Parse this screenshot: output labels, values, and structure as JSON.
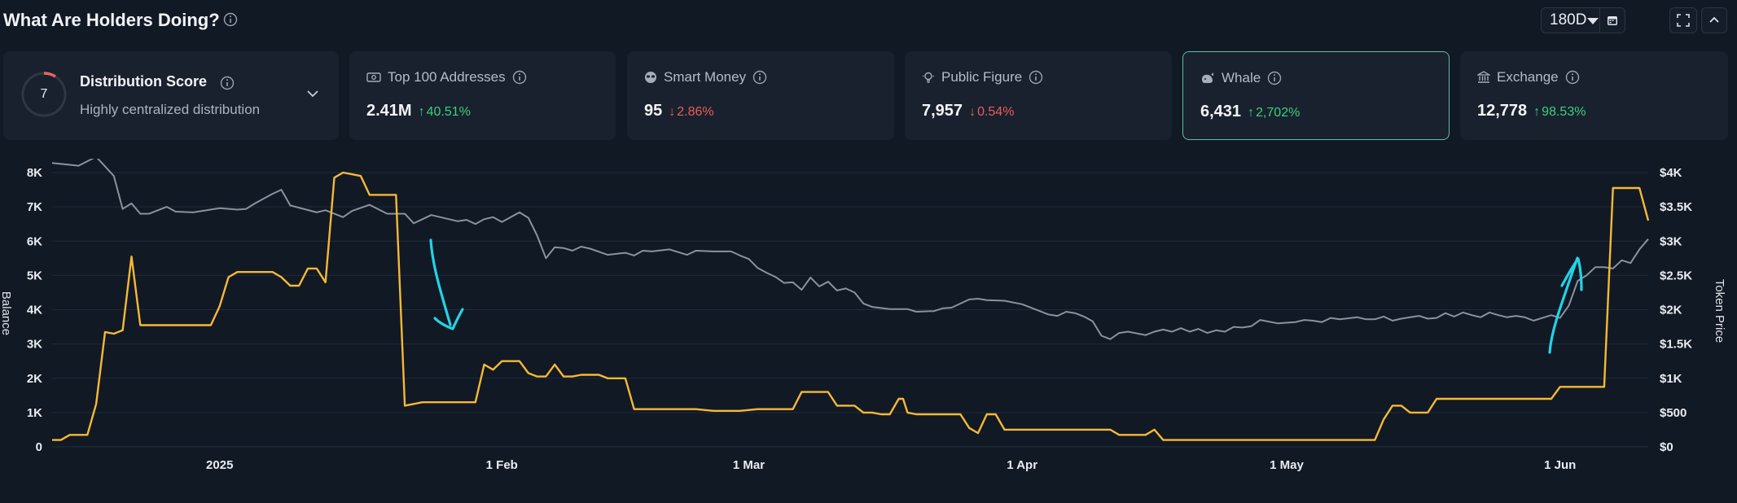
{
  "header": {
    "title": "What Are Holders Doing?",
    "range": "180D"
  },
  "cards": {
    "distribution": {
      "score": "7",
      "title": "Distribution Score",
      "subtitle": "Highly centralized distribution"
    },
    "top100": {
      "label": "Top 100 Addresses",
      "value": "2.41M",
      "change": "40.51%",
      "direction": "up"
    },
    "smart_money": {
      "label": "Smart Money",
      "value": "95",
      "change": "2.86%",
      "direction": "down"
    },
    "public_figure": {
      "label": "Public Figure",
      "value": "7,957",
      "change": "0.54%",
      "direction": "down"
    },
    "whale": {
      "label": "Whale",
      "value": "6,431",
      "change": "2,702%",
      "direction": "up"
    },
    "exchange": {
      "label": "Exchange",
      "value": "12,778",
      "change": "98.53%",
      "direction": "up"
    }
  },
  "colors": {
    "background": "#111925",
    "card": "#18212d",
    "active_border": "#5fc0a4",
    "up": "#3fcf7e",
    "down": "#ec5b5b",
    "balance_line": "#f6b935",
    "price_line": "#8b929d",
    "annotation": "#22d3e6"
  },
  "chart_data": {
    "type": "line",
    "left_axis": {
      "label": "Balance",
      "ticks": [
        "0",
        "1K",
        "2K",
        "3K",
        "4K",
        "5K",
        "6K",
        "7K",
        "8K"
      ],
      "range": [
        0,
        8000
      ]
    },
    "right_axis": {
      "label": "Token Price",
      "ticks": [
        "$0",
        "$500",
        "$1K",
        "$1.5K",
        "$2K",
        "$2.5K",
        "$3K",
        "$3.5K",
        "$4K"
      ],
      "range": [
        0,
        4000
      ]
    },
    "x_ticks": [
      "2025",
      "1 Feb",
      "1 Mar",
      "1 Apr",
      "1 May",
      "1 Jun"
    ],
    "x_tick_days": [
      19,
      51,
      79,
      110,
      140,
      171
    ],
    "x_range": [
      0,
      181
    ],
    "series": [
      {
        "axis": "left",
        "color": "#f6b935",
        "points": [
          [
            0,
            200
          ],
          [
            1,
            200
          ],
          [
            2,
            350
          ],
          [
            3,
            350
          ],
          [
            4,
            350
          ],
          [
            5,
            1250
          ],
          [
            6,
            3350
          ],
          [
            7,
            3300
          ],
          [
            8,
            3400
          ],
          [
            9,
            5550
          ],
          [
            10,
            3550
          ],
          [
            11,
            3550
          ],
          [
            13,
            3550
          ],
          [
            18,
            3550
          ],
          [
            19,
            4100
          ],
          [
            20,
            4950
          ],
          [
            21,
            5100
          ],
          [
            25,
            5100
          ],
          [
            26,
            4950
          ],
          [
            27,
            4700
          ],
          [
            28,
            4700
          ],
          [
            29,
            5200
          ],
          [
            30,
            5200
          ],
          [
            31,
            4800
          ],
          [
            32,
            7850
          ],
          [
            33,
            8000
          ],
          [
            34,
            7950
          ],
          [
            35,
            7900
          ],
          [
            36,
            7350
          ],
          [
            39,
            7350
          ],
          [
            40,
            1200
          ],
          [
            42,
            1300
          ],
          [
            48,
            1300
          ],
          [
            49,
            2400
          ],
          [
            50,
            2250
          ],
          [
            51,
            2500
          ],
          [
            53,
            2500
          ],
          [
            54,
            2150
          ],
          [
            55,
            2050
          ],
          [
            56,
            2050
          ],
          [
            57,
            2400
          ],
          [
            58,
            2050
          ],
          [
            59,
            2050
          ],
          [
            60,
            2100
          ],
          [
            62,
            2100
          ],
          [
            63,
            2000
          ],
          [
            65,
            2000
          ],
          [
            66,
            1100
          ],
          [
            73,
            1100
          ],
          [
            75,
            1050
          ],
          [
            78,
            1050
          ],
          [
            80,
            1100
          ],
          [
            81,
            1100
          ],
          [
            83,
            1100
          ],
          [
            84,
            1100
          ],
          [
            85,
            1600
          ],
          [
            88,
            1600
          ],
          [
            89,
            1200
          ],
          [
            91,
            1200
          ],
          [
            92,
            1000
          ],
          [
            93,
            1000
          ],
          [
            94,
            950
          ],
          [
            95,
            950
          ],
          [
            96,
            1400
          ],
          [
            96.5,
            1400
          ],
          [
            97,
            1000
          ],
          [
            98,
            950
          ],
          [
            103,
            950
          ],
          [
            104,
            550
          ],
          [
            105,
            400
          ],
          [
            106,
            950
          ],
          [
            107,
            950
          ],
          [
            108,
            500
          ],
          [
            111,
            500
          ],
          [
            120,
            500
          ],
          [
            121,
            350
          ],
          [
            124,
            350
          ],
          [
            125,
            500
          ],
          [
            126,
            200
          ],
          [
            150,
            200
          ],
          [
            151,
            800
          ],
          [
            152,
            1200
          ],
          [
            153,
            1200
          ],
          [
            154,
            1000
          ],
          [
            155,
            1000
          ],
          [
            156,
            1000
          ],
          [
            157,
            1400
          ],
          [
            158,
            1400
          ],
          [
            168,
            1400
          ],
          [
            170,
            1400
          ],
          [
            171,
            1750
          ],
          [
            172,
            1750
          ],
          [
            176,
            1750
          ],
          [
            177,
            7550
          ],
          [
            180,
            7550
          ],
          [
            181,
            6600
          ]
        ]
      },
      {
        "axis": "right",
        "color": "#8b929d",
        "points": [
          [
            0,
            4140
          ],
          [
            3,
            4100
          ],
          [
            5,
            4230
          ],
          [
            7,
            3950
          ],
          [
            8,
            3470
          ],
          [
            9,
            3550
          ],
          [
            10,
            3400
          ],
          [
            11,
            3400
          ],
          [
            13,
            3500
          ],
          [
            14,
            3430
          ],
          [
            16,
            3420
          ],
          [
            19,
            3480
          ],
          [
            21,
            3460
          ],
          [
            22,
            3470
          ],
          [
            23,
            3550
          ],
          [
            25,
            3690
          ],
          [
            26,
            3750
          ],
          [
            27,
            3520
          ],
          [
            30,
            3420
          ],
          [
            31,
            3450
          ],
          [
            33,
            3350
          ],
          [
            34,
            3440
          ],
          [
            36,
            3530
          ],
          [
            38,
            3400
          ],
          [
            40,
            3400
          ],
          [
            41,
            3260
          ],
          [
            42,
            3320
          ],
          [
            43,
            3380
          ],
          [
            46,
            3290
          ],
          [
            47,
            3310
          ],
          [
            48,
            3250
          ],
          [
            49,
            3320
          ],
          [
            50,
            3350
          ],
          [
            51,
            3280
          ],
          [
            53,
            3420
          ],
          [
            54,
            3340
          ],
          [
            55,
            3080
          ],
          [
            56,
            2750
          ],
          [
            57,
            2910
          ],
          [
            58,
            2900
          ],
          [
            59,
            2860
          ],
          [
            60,
            2920
          ],
          [
            61,
            2890
          ],
          [
            63,
            2800
          ],
          [
            65,
            2830
          ],
          [
            66,
            2790
          ],
          [
            67,
            2860
          ],
          [
            68,
            2850
          ],
          [
            70,
            2880
          ],
          [
            72,
            2800
          ],
          [
            73,
            2860
          ],
          [
            75,
            2850
          ],
          [
            77,
            2850
          ],
          [
            78,
            2790
          ],
          [
            79,
            2740
          ],
          [
            80,
            2610
          ],
          [
            81,
            2540
          ],
          [
            82,
            2480
          ],
          [
            83,
            2390
          ],
          [
            84,
            2400
          ],
          [
            85,
            2290
          ],
          [
            86,
            2470
          ],
          [
            87,
            2340
          ],
          [
            88,
            2410
          ],
          [
            89,
            2280
          ],
          [
            90,
            2310
          ],
          [
            91,
            2250
          ],
          [
            92,
            2090
          ],
          [
            93,
            2040
          ],
          [
            95,
            2010
          ],
          [
            97,
            2010
          ],
          [
            98,
            1970
          ],
          [
            100,
            1980
          ],
          [
            101,
            2020
          ],
          [
            102,
            2030
          ],
          [
            104,
            2150
          ],
          [
            105,
            2160
          ],
          [
            106,
            2140
          ],
          [
            108,
            2130
          ],
          [
            110,
            2080
          ],
          [
            113,
            1930
          ],
          [
            114,
            1910
          ],
          [
            115,
            1970
          ],
          [
            116,
            1950
          ],
          [
            117,
            1900
          ],
          [
            118,
            1830
          ],
          [
            119,
            1620
          ],
          [
            120,
            1570
          ],
          [
            121,
            1660
          ],
          [
            122,
            1680
          ],
          [
            124,
            1630
          ],
          [
            125,
            1680
          ],
          [
            126,
            1710
          ],
          [
            127,
            1680
          ],
          [
            128,
            1730
          ],
          [
            129,
            1680
          ],
          [
            130,
            1720
          ],
          [
            131,
            1660
          ],
          [
            132,
            1700
          ],
          [
            133,
            1680
          ],
          [
            134,
            1750
          ],
          [
            135,
            1740
          ],
          [
            136,
            1760
          ],
          [
            137,
            1850
          ],
          [
            139,
            1800
          ],
          [
            141,
            1820
          ],
          [
            142,
            1850
          ],
          [
            143,
            1840
          ],
          [
            144,
            1820
          ],
          [
            145,
            1880
          ],
          [
            146,
            1860
          ],
          [
            148,
            1890
          ],
          [
            149,
            1860
          ],
          [
            150,
            1860
          ],
          [
            151,
            1900
          ],
          [
            152,
            1840
          ],
          [
            153,
            1870
          ],
          [
            154,
            1890
          ],
          [
            155,
            1910
          ],
          [
            156,
            1870
          ],
          [
            157,
            1880
          ],
          [
            158,
            1950
          ],
          [
            159,
            1900
          ],
          [
            160,
            1960
          ],
          [
            161,
            1920
          ],
          [
            162,
            1890
          ],
          [
            163,
            1960
          ],
          [
            164,
            1920
          ],
          [
            165,
            1890
          ],
          [
            166,
            1910
          ],
          [
            167,
            1890
          ],
          [
            168,
            1840
          ],
          [
            169,
            1880
          ],
          [
            170,
            1920
          ],
          [
            171,
            1880
          ],
          [
            172,
            2060
          ],
          [
            173,
            2420
          ],
          [
            174,
            2500
          ],
          [
            175,
            2620
          ],
          [
            176,
            2620
          ],
          [
            177,
            2600
          ],
          [
            178,
            2720
          ],
          [
            179,
            2680
          ],
          [
            180,
            2880
          ],
          [
            181,
            3030
          ]
        ]
      }
    ]
  }
}
